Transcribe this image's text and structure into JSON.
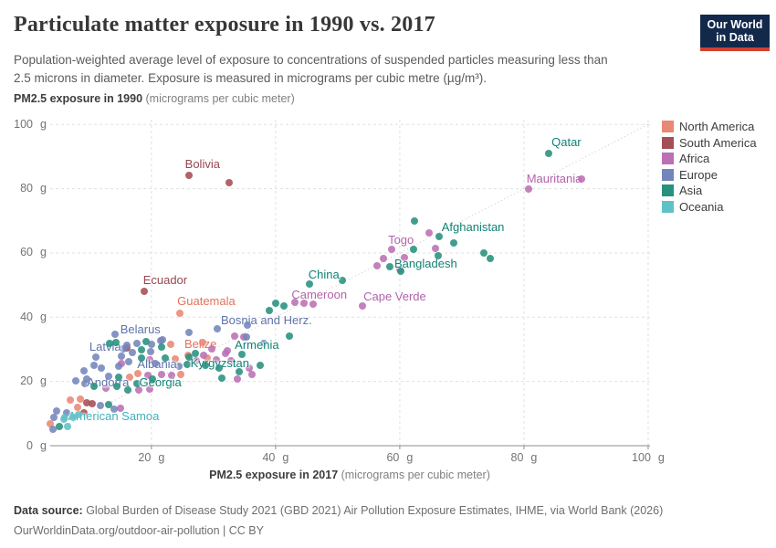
{
  "header": {
    "title": "Particulate matter exposure in 1990 vs. 2017",
    "subtitle_line1": "Population-weighted average level of exposure to concentrations of suspended particles measuring less than",
    "subtitle_line2": "2.5 microns in diameter. Exposure is measured in micrograms per cubic metre (µg/m³).",
    "logo_line1": "Our World",
    "logo_line2": "in Data"
  },
  "axes": {
    "y_title_bold": "PM2.5 exposure in 1990",
    "y_title_unit": " (micrograms per cubic meter)",
    "x_title_bold": "PM2.5 exposure in 2017",
    "x_title_unit": " (micrograms per cubic meter)",
    "tick_unit": "g",
    "y_ticks": [
      0,
      20,
      40,
      60,
      80,
      100
    ],
    "x_ticks": [
      20,
      40,
      60,
      80,
      100
    ]
  },
  "legend": {
    "items": [
      {
        "key": "na",
        "label": "North America"
      },
      {
        "key": "sa",
        "label": "South America"
      },
      {
        "key": "af",
        "label": "Africa"
      },
      {
        "key": "eu",
        "label": "Europe"
      },
      {
        "key": "as",
        "label": "Asia"
      },
      {
        "key": "oc",
        "label": "Oceania"
      }
    ]
  },
  "colors": {
    "na": {
      "dot": "#e98874",
      "text": "#e2735c"
    },
    "sa": {
      "dot": "#a44f55",
      "text": "#97474e"
    },
    "af": {
      "dot": "#bb6fb4",
      "text": "#b163aa"
    },
    "eu": {
      "dot": "#7385bb",
      "text": "#5e73ab"
    },
    "as": {
      "dot": "#27917e",
      "text": "#108374"
    },
    "oc": {
      "dot": "#60c1c7",
      "text": "#3fb2bc"
    },
    "grid": "#e0e0e0",
    "axis": "#8c8c8c",
    "diagonal": "#c8c8c8"
  },
  "chart_data": {
    "type": "scatter",
    "title": "Particulate matter exposure in 1990 vs. 2017",
    "xlabel": "PM2.5 exposure in 2017 (micrograms per cubic meter)",
    "ylabel": "PM2.5 exposure in 1990 (micrograms per cubic meter)",
    "xlim": [
      3.7,
      100.3
    ],
    "ylim": [
      0,
      101.5
    ],
    "grid": true,
    "diagonal_reference_line": true,
    "legend_position": "right",
    "series": [
      {
        "name": "North America",
        "key": "na",
        "points": [
          {
            "x": 24.6,
            "y": 41.2,
            "label": "Guatemala",
            "dx": -3,
            "dy": -21
          },
          {
            "x": 25.9,
            "y": 28.1,
            "label": "Belize",
            "dx": -4,
            "dy": -20
          },
          {
            "x": 23.8,
            "y": 27.0
          },
          {
            "x": 24.7,
            "y": 22.2
          },
          {
            "x": 17.8,
            "y": 22.4
          },
          {
            "x": 16.5,
            "y": 21.3
          },
          {
            "x": 6.9,
            "y": 14.2
          },
          {
            "x": 8.6,
            "y": 14.5
          },
          {
            "x": 8.1,
            "y": 11.9
          },
          {
            "x": 3.7,
            "y": 6.8
          },
          {
            "x": 28.2,
            "y": 32.1
          },
          {
            "x": 23.1,
            "y": 31.5
          },
          {
            "x": 29.0,
            "y": 27.3
          }
        ]
      },
      {
        "name": "South America",
        "key": "sa",
        "points": [
          {
            "x": 26.0,
            "y": 84.1,
            "label": "Bolivia",
            "dx": -4,
            "dy": -20
          },
          {
            "x": 32.5,
            "y": 81.8
          },
          {
            "x": 18.8,
            "y": 48.0,
            "label": "Ecuador",
            "dx": -1,
            "dy": -20
          },
          {
            "x": 9.6,
            "y": 13.4
          },
          {
            "x": 10.5,
            "y": 13.1
          },
          {
            "x": 9.1,
            "y": 10.2
          },
          {
            "x": 16.0,
            "y": 30.4
          }
        ]
      },
      {
        "name": "Africa",
        "key": "af",
        "points": [
          {
            "x": 80.7,
            "y": 79.8,
            "label": "Mauritania",
            "dx": -2,
            "dy": -19
          },
          {
            "x": 89.3,
            "y": 83.0
          },
          {
            "x": 58.7,
            "y": 61.1,
            "label": "Togo",
            "dx": -4,
            "dy": -18
          },
          {
            "x": 64.7,
            "y": 66.2
          },
          {
            "x": 65.7,
            "y": 61.4
          },
          {
            "x": 57.3,
            "y": 58.2
          },
          {
            "x": 60.7,
            "y": 58.5
          },
          {
            "x": 56.3,
            "y": 56.0
          },
          {
            "x": 60.0,
            "y": 54.8
          },
          {
            "x": 46.1,
            "y": 44.2,
            "label": "Cameroon",
            "dx": -24,
            "dy": -18
          },
          {
            "x": 54.0,
            "y": 43.5,
            "label": "Cape Verde",
            "dx": 1,
            "dy": -18
          },
          {
            "x": 43.1,
            "y": 44.6
          },
          {
            "x": 44.6,
            "y": 44.3
          },
          {
            "x": 33.4,
            "y": 34.1
          },
          {
            "x": 34.8,
            "y": 33.8
          },
          {
            "x": 31.9,
            "y": 28.7
          },
          {
            "x": 30.4,
            "y": 26.7
          },
          {
            "x": 28.4,
            "y": 28.1
          },
          {
            "x": 29.7,
            "y": 30.1
          },
          {
            "x": 32.2,
            "y": 29.5
          },
          {
            "x": 32.8,
            "y": 26.4
          },
          {
            "x": 33.8,
            "y": 20.7
          },
          {
            "x": 36.2,
            "y": 22.2
          },
          {
            "x": 35.7,
            "y": 24.1
          },
          {
            "x": 27.2,
            "y": 26.4
          },
          {
            "x": 19.7,
            "y": 26.7
          },
          {
            "x": 15.2,
            "y": 25.6
          },
          {
            "x": 19.4,
            "y": 21.9
          },
          {
            "x": 21.7,
            "y": 22.2
          },
          {
            "x": 23.3,
            "y": 21.9
          },
          {
            "x": 12.6,
            "y": 17.9
          },
          {
            "x": 18.0,
            "y": 17.3
          },
          {
            "x": 19.7,
            "y": 17.6
          },
          {
            "x": 15.0,
            "y": 11.6
          }
        ]
      },
      {
        "name": "Europe",
        "key": "eu",
        "points": [
          {
            "x": 30.6,
            "y": 36.4,
            "label": "Bosnia and Herz.",
            "dx": 4,
            "dy": -17
          },
          {
            "x": 24.4,
            "y": 24.7,
            "label": "Albania",
            "dx": -2,
            "dy": -10,
            "anchor": "end"
          },
          {
            "x": 9.3,
            "y": 19.3,
            "label": "Andorra",
            "dx": 2,
            "dy": -9
          },
          {
            "x": 15.4,
            "y": 30.1,
            "label": "Latvia",
            "dx": -2,
            "dy": -10,
            "anchor": "end"
          },
          {
            "x": 14.1,
            "y": 34.7,
            "label": "Belarus",
            "dx": 6,
            "dy": -13
          },
          {
            "x": 16.1,
            "y": 31.2
          },
          {
            "x": 17.6,
            "y": 31.8
          },
          {
            "x": 16.9,
            "y": 29.0
          },
          {
            "x": 15.2,
            "y": 27.8
          },
          {
            "x": 11.0,
            "y": 27.6
          },
          {
            "x": 10.8,
            "y": 25.0
          },
          {
            "x": 11.9,
            "y": 24.1
          },
          {
            "x": 9.2,
            "y": 23.3
          },
          {
            "x": 14.7,
            "y": 24.7
          },
          {
            "x": 16.3,
            "y": 26.1
          },
          {
            "x": 20.6,
            "y": 25.6
          },
          {
            "x": 13.1,
            "y": 21.6
          },
          {
            "x": 9.6,
            "y": 20.7
          },
          {
            "x": 7.8,
            "y": 20.2
          },
          {
            "x": 11.8,
            "y": 12.5
          },
          {
            "x": 14.0,
            "y": 11.4
          },
          {
            "x": 4.7,
            "y": 10.8
          },
          {
            "x": 6.3,
            "y": 10.2
          },
          {
            "x": 4.3,
            "y": 8.8
          },
          {
            "x": 4.1,
            "y": 5.1
          },
          {
            "x": 26.0,
            "y": 35.2
          },
          {
            "x": 38.1,
            "y": 31.8
          },
          {
            "x": 19.9,
            "y": 29.3
          },
          {
            "x": 21.5,
            "y": 32.7
          },
          {
            "x": 21.8,
            "y": 33.0
          },
          {
            "x": 20.0,
            "y": 31.5
          },
          {
            "x": 35.3,
            "y": 33.8
          },
          {
            "x": 35.4,
            "y": 37.5
          }
        ]
      },
      {
        "name": "Asia",
        "key": "as",
        "points": [
          {
            "x": 84.0,
            "y": 91.0,
            "label": "Qatar",
            "dx": 3,
            "dy": -20
          },
          {
            "x": 66.3,
            "y": 65.1,
            "label": "Afghanistan",
            "dx": 3,
            "dy": -18
          },
          {
            "x": 58.4,
            "y": 55.7,
            "label": "Bangladesh",
            "dx": 5,
            "dy": -11
          },
          {
            "x": 50.7,
            "y": 51.4,
            "label": "China",
            "dx": -3,
            "dy": -14,
            "anchor": "end"
          },
          {
            "x": 34.6,
            "y": 28.4,
            "label": "Armenia",
            "dx": -8,
            "dy": -18
          },
          {
            "x": 25.7,
            "y": 25.3,
            "label": "Kyrgyzstan",
            "dx": 4,
            "dy": -9
          },
          {
            "x": 17.6,
            "y": 19.3,
            "label": "Georgia",
            "dx": 3,
            "dy": -9
          },
          {
            "x": 62.4,
            "y": 69.9
          },
          {
            "x": 68.7,
            "y": 63.1
          },
          {
            "x": 66.2,
            "y": 59.1
          },
          {
            "x": 62.2,
            "y": 61.1
          },
          {
            "x": 73.5,
            "y": 59.9
          },
          {
            "x": 74.5,
            "y": 58.2
          },
          {
            "x": 60.1,
            "y": 54.3
          },
          {
            "x": 45.4,
            "y": 50.3
          },
          {
            "x": 41.4,
            "y": 43.6
          },
          {
            "x": 40.0,
            "y": 44.3
          },
          {
            "x": 39.0,
            "y": 42.0
          },
          {
            "x": 42.2,
            "y": 34.1
          },
          {
            "x": 37.5,
            "y": 25.0
          },
          {
            "x": 34.1,
            "y": 23.0
          },
          {
            "x": 31.3,
            "y": 21.0
          },
          {
            "x": 30.9,
            "y": 24.1
          },
          {
            "x": 27.1,
            "y": 28.7
          },
          {
            "x": 28.7,
            "y": 25.0
          },
          {
            "x": 26.0,
            "y": 27.6
          },
          {
            "x": 22.2,
            "y": 27.3
          },
          {
            "x": 21.6,
            "y": 30.7
          },
          {
            "x": 18.4,
            "y": 29.8
          },
          {
            "x": 18.4,
            "y": 27.3
          },
          {
            "x": 19.1,
            "y": 32.4
          },
          {
            "x": 14.3,
            "y": 32.1
          },
          {
            "x": 13.2,
            "y": 31.8
          },
          {
            "x": 14.7,
            "y": 21.3
          },
          {
            "x": 16.2,
            "y": 17.3
          },
          {
            "x": 14.4,
            "y": 18.5
          },
          {
            "x": 10.8,
            "y": 18.5
          },
          {
            "x": 20.1,
            "y": 20.7
          },
          {
            "x": 13.1,
            "y": 12.8
          },
          {
            "x": 5.1,
            "y": 6.0
          }
        ]
      },
      {
        "name": "Oceania",
        "key": "oc",
        "points": [
          {
            "x": 6.0,
            "y": 8.8,
            "label": "American Samoa",
            "dx": 4,
            "dy": -9
          },
          {
            "x": 5.9,
            "y": 8.2
          },
          {
            "x": 6.5,
            "y": 6.0
          },
          {
            "x": 7.4,
            "y": 8.8
          },
          {
            "x": 8.2,
            "y": 9.6
          }
        ]
      }
    ]
  },
  "footer": {
    "source_label": "Data source:",
    "source_text": " Global Burden of Disease Study 2021 (GBD 2021) Air Pollution Exposure Estimates, IHME, via World Bank (2026)",
    "url_line": "OurWorldinData.org/outdoor-air-pollution | CC BY"
  }
}
